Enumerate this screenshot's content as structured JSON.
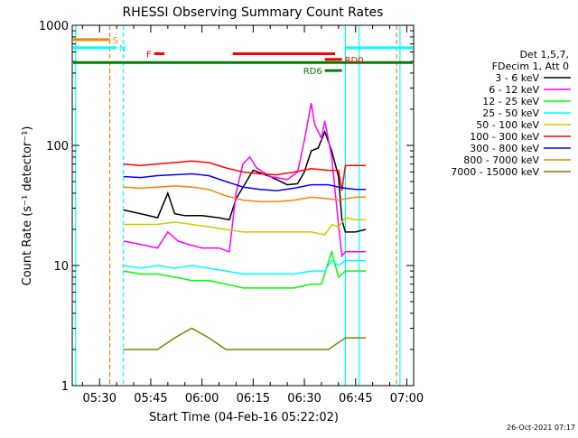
{
  "chart_data": {
    "type": "line",
    "title": "RHESSI Observing Summary Count Rates",
    "xlabel": "Start Time (04-Feb-16 05:22:02)",
    "ylabel": "Count Rate (s⁻¹ detector⁻¹)",
    "y_scale": "log",
    "ylim": [
      1,
      1000
    ],
    "xlim": [
      "05:22",
      "07:02"
    ],
    "x_ticks": [
      "05:30",
      "05:45",
      "06:00",
      "06:15",
      "06:30",
      "06:45",
      "07:00"
    ],
    "y_ticks": [
      "1",
      "10",
      "100",
      "1000"
    ],
    "timestamp": "26-Oct-2021 07:17",
    "legend_header": [
      "Det 1,5,7,",
      "FDecim 1, Att 0"
    ],
    "legend_position": "right",
    "series": [
      {
        "name": "3 - 6 keV",
        "color": "#000000",
        "x": [
          "05:37",
          "05:42",
          "05:47",
          "05:50",
          "05:52",
          "05:55",
          "06:00",
          "06:05",
          "06:08",
          "06:10",
          "06:15",
          "06:20",
          "06:25",
          "06:28",
          "06:30",
          "06:32",
          "06:34",
          "06:36",
          "06:38",
          "06:40",
          "06:41",
          "06:42",
          "06:45",
          "06:48"
        ],
        "y": [
          29,
          27,
          25,
          40,
          27,
          26,
          26,
          25,
          24,
          36,
          62,
          55,
          47,
          48,
          60,
          90,
          95,
          130,
          90,
          55,
          24,
          19,
          19,
          20
        ]
      },
      {
        "name": "6 - 12 keV",
        "color": "#ff00ff",
        "x": [
          "05:37",
          "05:42",
          "05:47",
          "05:50",
          "05:53",
          "05:56",
          "06:00",
          "06:05",
          "06:08",
          "06:10",
          "06:12",
          "06:14",
          "06:16",
          "06:20",
          "06:25",
          "06:28",
          "06:30",
          "06:32",
          "06:33",
          "06:35",
          "06:36",
          "06:38",
          "06:40",
          "06:41",
          "06:42",
          "06:45",
          "06:48"
        ],
        "y": [
          16,
          15,
          14,
          19,
          16,
          15,
          14,
          14,
          13,
          40,
          70,
          80,
          65,
          55,
          52,
          60,
          110,
          225,
          150,
          115,
          160,
          80,
          22,
          12,
          13,
          13,
          13
        ]
      },
      {
        "name": "12 - 25 keV",
        "color": "#00ff00",
        "x": [
          "05:37",
          "05:42",
          "05:47",
          "05:52",
          "05:57",
          "06:02",
          "06:07",
          "06:12",
          "06:17",
          "06:22",
          "06:27",
          "06:32",
          "06:35",
          "06:38",
          "06:40",
          "06:42",
          "06:45",
          "06:48"
        ],
        "y": [
          9,
          8.5,
          8.5,
          8,
          7.5,
          7.5,
          7,
          6.5,
          6.5,
          6.5,
          6.5,
          7,
          7,
          13,
          8,
          9,
          9,
          9
        ]
      },
      {
        "name": "25 - 50 keV",
        "color": "#00ffff",
        "x": [
          "05:37",
          "05:42",
          "05:47",
          "05:52",
          "05:57",
          "06:02",
          "06:07",
          "06:12",
          "06:17",
          "06:22",
          "06:27",
          "06:32",
          "06:36",
          "06:38",
          "06:40",
          "06:42",
          "06:45",
          "06:48"
        ],
        "y": [
          10,
          9.5,
          10,
          9.5,
          10,
          9.5,
          9,
          8.5,
          8.5,
          8.5,
          8.5,
          9,
          9,
          11,
          10,
          11,
          11,
          11
        ]
      },
      {
        "name": "50 - 100 keV",
        "color": "#cccc00",
        "x": [
          "05:37",
          "05:42",
          "05:47",
          "05:52",
          "05:57",
          "06:02",
          "06:07",
          "06:12",
          "06:17",
          "06:22",
          "06:27",
          "06:32",
          "06:36",
          "06:38",
          "06:40",
          "06:42",
          "06:45",
          "06:48"
        ],
        "y": [
          22,
          22,
          22,
          23,
          22,
          21,
          20,
          19,
          19,
          19,
          19,
          19,
          18,
          22,
          21,
          25,
          24,
          24
        ]
      },
      {
        "name": "100 - 300 keV",
        "color": "#ff0000",
        "x": [
          "05:37",
          "05:42",
          "05:47",
          "05:52",
          "05:57",
          "06:02",
          "06:07",
          "06:12",
          "06:17",
          "06:22",
          "06:27",
          "06:32",
          "06:37",
          "06:40",
          "06:41",
          "06:42",
          "06:45",
          "06:48"
        ],
        "y": [
          70,
          68,
          70,
          72,
          74,
          72,
          65,
          60,
          58,
          57,
          60,
          64,
          62,
          62,
          42,
          68,
          68,
          68
        ]
      },
      {
        "name": "300 - 800 keV",
        "color": "#0000ff",
        "x": [
          "05:37",
          "05:42",
          "05:47",
          "05:52",
          "05:57",
          "06:02",
          "06:07",
          "06:12",
          "06:17",
          "06:22",
          "06:27",
          "06:32",
          "06:37",
          "06:40",
          "06:42",
          "06:45",
          "06:48"
        ],
        "y": [
          55,
          54,
          56,
          57,
          58,
          56,
          50,
          45,
          43,
          42,
          44,
          47,
          47,
          45,
          44,
          43,
          43
        ]
      },
      {
        "name": "800 - 7000 keV",
        "color": "#ff8000",
        "x": [
          "05:37",
          "05:42",
          "05:47",
          "05:52",
          "05:57",
          "06:02",
          "06:07",
          "06:12",
          "06:17",
          "06:22",
          "06:27",
          "06:32",
          "06:37",
          "06:40",
          "06:42",
          "06:45",
          "06:48"
        ],
        "y": [
          45,
          44,
          45,
          46,
          45,
          43,
          38,
          35,
          34,
          34,
          35,
          37,
          36,
          35,
          36,
          37,
          37
        ]
      },
      {
        "name": "7000 - 15000 keV",
        "color": "#808000",
        "x": [
          "05:37",
          "05:42",
          "05:47",
          "05:52",
          "05:57",
          "06:02",
          "06:07",
          "06:12",
          "06:17",
          "06:22",
          "06:27",
          "06:32",
          "06:37",
          "06:42",
          "06:48"
        ],
        "y": [
          2,
          2,
          2,
          2.5,
          3,
          2.5,
          2,
          2,
          2,
          2,
          2,
          2,
          2,
          2.5,
          2.5
        ]
      }
    ],
    "state_bars": [
      {
        "label": "S",
        "color": "#ff8000",
        "x": [
          "05:22",
          "05:33"
        ],
        "y": 760
      },
      {
        "label": "N",
        "color": "#00ffff",
        "x": [
          "05:22",
          "05:35"
        ],
        "y": 650
      },
      {
        "label": "F",
        "color": "#ff0000",
        "x": [
          "05:46",
          "05:49"
        ],
        "y": 580
      },
      {
        "label": "",
        "color": "#ff0000",
        "x": [
          "06:09",
          "06:39"
        ],
        "y": 580
      },
      {
        "label": "",
        "color": "#008000",
        "x": [
          "05:22",
          "07:02"
        ],
        "y": 490
      },
      {
        "label": "RD0",
        "color": "#ff0000",
        "x": [
          "06:36",
          "06:41"
        ],
        "y": 520
      },
      {
        "label": "RD6",
        "color": "#008000",
        "x": [
          "06:36",
          "06:41"
        ],
        "y": 420
      },
      {
        "label": "",
        "color": "#00ffff",
        "x": [
          "06:42",
          "07:02"
        ],
        "y": 650
      }
    ],
    "vertical_markers": [
      {
        "x": "05:23",
        "color": "#00ffff",
        "style": "solid"
      },
      {
        "x": "05:33",
        "color": "#ff8000",
        "style": "dashed"
      },
      {
        "x": "05:37",
        "color": "#00ffff",
        "style": "dashed"
      },
      {
        "x": "06:42",
        "color": "#00ffff",
        "style": "solid"
      },
      {
        "x": "06:46",
        "color": "#00ffff",
        "style": "solid"
      },
      {
        "x": "06:57",
        "color": "#ff8000",
        "style": "dashed"
      },
      {
        "x": "06:58",
        "color": "#00ffff",
        "style": "solid"
      }
    ]
  }
}
